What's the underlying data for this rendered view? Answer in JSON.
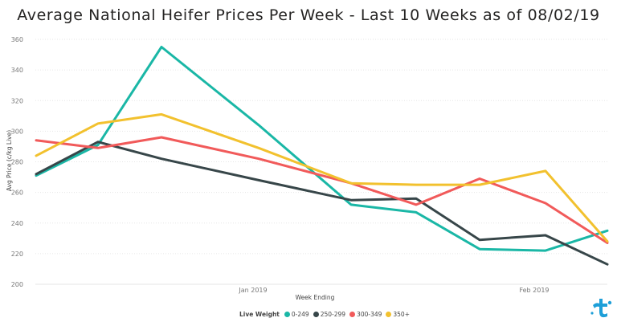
{
  "chart_data": {
    "type": "line",
    "title": "Average National Heifer Prices Per Week - Last 10 Weeks as of 08/02/19",
    "xlabel": "Week Ending",
    "ylabel": "Avg Price (c/kg Live)",
    "x_tick_labels": [
      "Jan 2019",
      "Feb 2019"
    ],
    "y_ticks": [
      200,
      220,
      240,
      260,
      280,
      300,
      320,
      340,
      360
    ],
    "ylim": [
      200,
      360
    ],
    "grid": "horizontal",
    "legend_title": "Live Weight",
    "legend_position": "bottom",
    "series": [
      {
        "name": "0-249",
        "color": "#1AB7A6",
        "values": [
          271,
          291,
          355,
          304,
          252,
          247,
          223,
          222,
          235
        ]
      },
      {
        "name": "250-299",
        "color": "#374649",
        "values": [
          272,
          293,
          282,
          268,
          255,
          256,
          229,
          232,
          213
        ]
      },
      {
        "name": "300-349",
        "color": "#F15A5A",
        "values": [
          294,
          289,
          296,
          282,
          266,
          252,
          269,
          253,
          227
        ]
      },
      {
        "name": "350+",
        "color": "#F2C12E",
        "values": [
          284,
          305,
          311,
          289,
          266,
          265,
          265,
          274,
          228
        ]
      }
    ]
  },
  "logo": {
    "name": "logo-icon",
    "color": "#1E9FD8"
  }
}
